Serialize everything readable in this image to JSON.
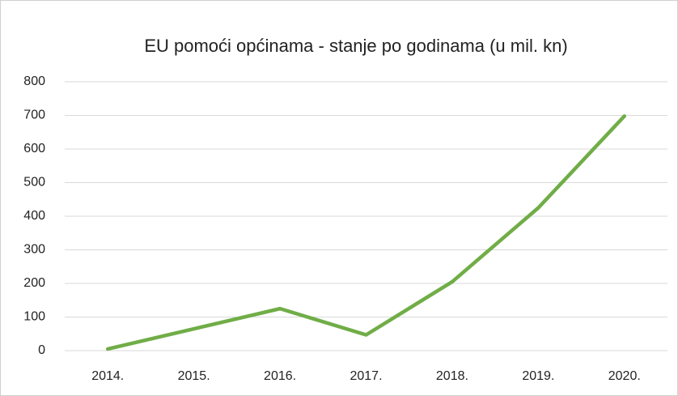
{
  "chart_data": {
    "type": "line",
    "title": "EU pomoći općinama - stanje po godinama (u mil. kn)",
    "categories": [
      "2014.",
      "2015.",
      "2016.",
      "2017.",
      "2018.",
      "2019.",
      "2020."
    ],
    "series": [
      {
        "color": "#70ad47",
        "values": [
          5,
          65,
          125,
          47,
          205,
          425,
          698
        ]
      }
    ],
    "ylim": [
      0,
      800
    ],
    "yticks": [
      0,
      100,
      200,
      300,
      400,
      500,
      600,
      700,
      800
    ],
    "grid": true
  }
}
